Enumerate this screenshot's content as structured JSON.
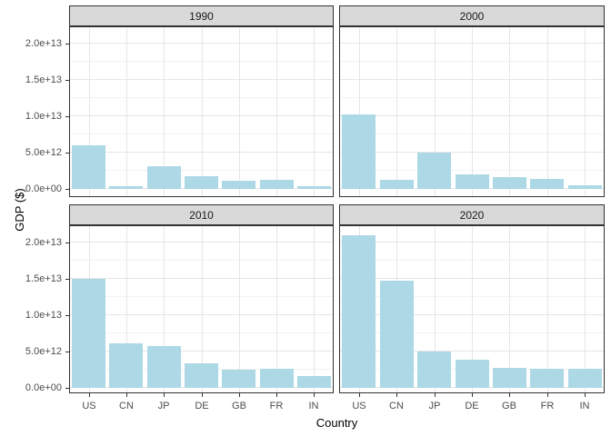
{
  "figure": {
    "x_axis_title": "Country",
    "y_axis_title": "GDP ($)"
  },
  "style": {
    "bar_fill": "#ADD8E6",
    "strip_background": "#D9D9D9",
    "panel_border": "#333333",
    "grid_major_color": "#E6E6E6",
    "grid_minor_color": "#F2F2F2",
    "tick_label_color": "#4D4D4D",
    "axis_title_color": "#000000"
  },
  "chart_data": {
    "type": "bar",
    "title": "",
    "xlabel": "Country",
    "ylabel": "GDP ($)",
    "facet_variable": "Year",
    "legend": "none",
    "grid": true,
    "ylim": [
      0,
      22000000000000.0
    ],
    "categories": [
      "US",
      "CN",
      "JP",
      "DE",
      "GB",
      "FR",
      "IN"
    ],
    "y_ticks": [
      {
        "value": 0,
        "label": "0.0e+00"
      },
      {
        "value": 5000000000000.0,
        "label": "5.0e+12"
      },
      {
        "value": 10000000000000.0,
        "label": "1.0e+13"
      },
      {
        "value": 15000000000000.0,
        "label": "1.5e+13"
      },
      {
        "value": 20000000000000.0,
        "label": "2.0e+13"
      }
    ],
    "y_minor_ticks": [
      2500000000000.0,
      7500000000000.0,
      12500000000000.0,
      17500000000000.0
    ],
    "facets": [
      {
        "label": "1990",
        "values": [
          5960000000000.0,
          360000000000.0,
          3130000000000.0,
          1770000000000.0,
          1090000000000.0,
          1270000000000.0,
          320000000000.0
        ]
      },
      {
        "label": "2000",
        "values": [
          10250000000000.0,
          1210000000000.0,
          4970000000000.0,
          1940000000000.0,
          1660000000000.0,
          1360000000000.0,
          470000000000.0
        ]
      },
      {
        "label": "2010",
        "values": [
          15050000000000.0,
          6090000000000.0,
          5760000000000.0,
          3400000000000.0,
          2480000000000.0,
          2640000000000.0,
          1680000000000.0
        ]
      },
      {
        "label": "2020",
        "values": [
          20950000000000.0,
          14690000000000.0,
          5040000000000.0,
          3890000000000.0,
          2760000000000.0,
          2630000000000.0,
          2660000000000.0
        ]
      }
    ]
  }
}
